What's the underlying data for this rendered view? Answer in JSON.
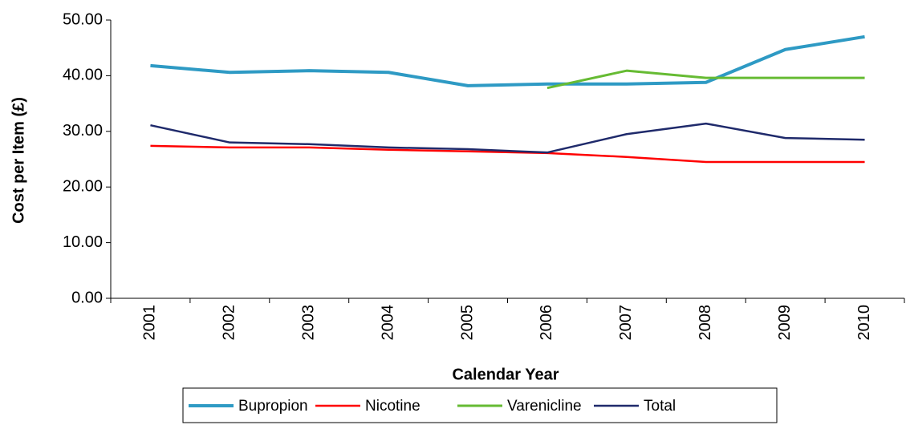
{
  "chart_data": {
    "type": "line",
    "xlabel": "Calendar Year",
    "ylabel": "Cost per Item (£)",
    "categories": [
      "2001",
      "2002",
      "2003",
      "2004",
      "2005",
      "2006",
      "2007",
      "2008",
      "2009",
      "2010"
    ],
    "series": [
      {
        "name": "Bupropion",
        "color": "#2e9ac4",
        "values": [
          41.8,
          40.6,
          40.9,
          40.6,
          38.2,
          38.5,
          38.5,
          38.8,
          44.7,
          47.0
        ]
      },
      {
        "name": "Nicotine",
        "color": "#ff0000",
        "values": [
          27.4,
          27.1,
          27.1,
          26.7,
          26.4,
          26.1,
          25.4,
          24.5,
          24.5,
          24.5
        ]
      },
      {
        "name": "Varenicline",
        "color": "#66bb33",
        "values": [
          null,
          null,
          null,
          null,
          null,
          37.8,
          40.9,
          39.6,
          39.6,
          39.6
        ]
      },
      {
        "name": "Total",
        "color": "#1f2a6b",
        "values": [
          31.1,
          28.0,
          27.7,
          27.1,
          26.8,
          26.2,
          29.5,
          31.4,
          28.8,
          28.5
        ]
      }
    ],
    "ylim": [
      0,
      50
    ],
    "yticks": [
      {
        "value": 0,
        "label": "0.00"
      },
      {
        "value": 10,
        "label": "10.00"
      },
      {
        "value": 20,
        "label": "20.00"
      },
      {
        "value": 30,
        "label": "30.00"
      },
      {
        "value": 40,
        "label": "40.00"
      },
      {
        "value": 50,
        "label": "50.00"
      }
    ],
    "grid": false,
    "legend": "bottom"
  }
}
